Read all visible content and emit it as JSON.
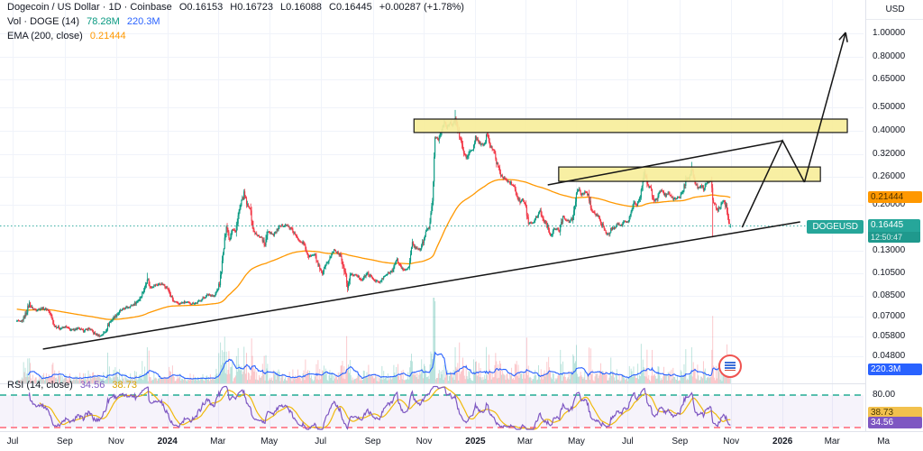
{
  "chart_data": {
    "type": "candlestick",
    "symbol": "Dogecoin / US Dollar",
    "interval": "1D",
    "exchange": "Coinbase",
    "title": "Dogecoin / US Dollar · 1D · Coinbase",
    "legend": {
      "ohlc": {
        "o": "O0.16153",
        "h": "H0.16723",
        "l": "L0.16088",
        "c": "C0.16445",
        "change": "+0.00287 (+1.78%)"
      },
      "volume": {
        "label": "Vol · DOGE (14)",
        "current": "78.28M",
        "ma": "220.3M"
      },
      "ema": {
        "label": "EMA (200, close)",
        "value": "0.21444"
      },
      "rsi": {
        "label": "RSI (14, close)",
        "value": "34.56",
        "ma_value": "38.73"
      }
    },
    "price_axis": {
      "currency": "USD",
      "ticks": [
        "1.00000",
        "0.80000",
        "0.65000",
        "0.50000",
        "0.40000",
        "0.32000",
        "0.26000",
        "0.20000",
        "0.13000",
        "0.10500",
        "0.08500",
        "0.07000",
        "0.05800",
        "0.04800"
      ],
      "last_price": "0.16445",
      "countdown": "12:50:47",
      "ema_badge": "0.21444",
      "volume_badge": "220.3M",
      "rsi_upper_label": "80.00",
      "rsi_ma_badge": "38.73",
      "rsi_badge": "34.56"
    },
    "time_axis": [
      {
        "d": 0,
        "t": "Jul"
      },
      {
        "d": 62,
        "t": "Sep"
      },
      {
        "d": 123,
        "t": "Nov"
      },
      {
        "d": 184,
        "t": "2024",
        "b": 1
      },
      {
        "d": 244,
        "t": "Mar"
      },
      {
        "d": 305,
        "t": "May"
      },
      {
        "d": 366,
        "t": "Jul"
      },
      {
        "d": 428,
        "t": "Sep"
      },
      {
        "d": 489,
        "t": "Nov"
      },
      {
        "d": 550,
        "t": "2025",
        "b": 1
      },
      {
        "d": 609,
        "t": "Mar"
      },
      {
        "d": 670,
        "t": "May"
      },
      {
        "d": 731,
        "t": "Jul"
      },
      {
        "d": 793,
        "t": "Sep"
      },
      {
        "d": 854,
        "t": "Nov"
      },
      {
        "d": 915,
        "t": "2026",
        "b": 1
      },
      {
        "d": 974,
        "t": "Mar"
      },
      {
        "d": 1035,
        "t": "Ma"
      }
    ],
    "levels": {
      "last_price": 0.16445,
      "ema_value": 0.21444,
      "rsi_value": 34.56,
      "rsi_ma_value": 38.73,
      "rsi_upper": 80,
      "rsi_lower": 20
    },
    "series": {
      "start_day": 5,
      "end_day": 853,
      "last_candle": {
        "o": 0.16153,
        "h": 0.16723,
        "l": 0.16088,
        "c": 0.16445
      },
      "anchors": [
        [
          5,
          0.067
        ],
        [
          10,
          0.0665
        ],
        [
          14,
          0.0695
        ],
        [
          20,
          0.079
        ],
        [
          23,
          0.0755
        ],
        [
          28,
          0.0745
        ],
        [
          35,
          0.0755
        ],
        [
          42,
          0.0745
        ],
        [
          46,
          0.07
        ],
        [
          49,
          0.0645
        ],
        [
          56,
          0.0625
        ],
        [
          63,
          0.0635
        ],
        [
          70,
          0.0615
        ],
        [
          77,
          0.0625
        ],
        [
          84,
          0.0612
        ],
        [
          91,
          0.0625
        ],
        [
          98,
          0.0592
        ],
        [
          104,
          0.0583
        ],
        [
          110,
          0.0605
        ],
        [
          115,
          0.0662
        ],
        [
          122,
          0.0702
        ],
        [
          129,
          0.0742
        ],
        [
          136,
          0.0762
        ],
        [
          143,
          0.0778
        ],
        [
          150,
          0.0818
        ],
        [
          157,
          0.0915
        ],
        [
          160,
          0.101
        ],
        [
          163,
          0.092
        ],
        [
          170,
          0.094
        ],
        [
          177,
          0.0952
        ],
        [
          184,
          0.0912
        ],
        [
          191,
          0.0805
        ],
        [
          198,
          0.0788
        ],
        [
          205,
          0.0802
        ],
        [
          212,
          0.079
        ],
        [
          219,
          0.0795
        ],
        [
          226,
          0.0828
        ],
        [
          233,
          0.0862
        ],
        [
          240,
          0.0845
        ],
        [
          246,
          0.095
        ],
        [
          251,
          0.133
        ],
        [
          254,
          0.166
        ],
        [
          258,
          0.144
        ],
        [
          261,
          0.161
        ],
        [
          265,
          0.154
        ],
        [
          268,
          0.181
        ],
        [
          272,
          0.204
        ],
        [
          275,
          0.221
        ],
        [
          279,
          0.197
        ],
        [
          282,
          0.195
        ],
        [
          286,
          0.157
        ],
        [
          290,
          0.15
        ],
        [
          296,
          0.147
        ],
        [
          300,
          0.135
        ],
        [
          303,
          0.157
        ],
        [
          310,
          0.151
        ],
        [
          317,
          0.162
        ],
        [
          324,
          0.166
        ],
        [
          331,
          0.159
        ],
        [
          338,
          0.146
        ],
        [
          345,
          0.14
        ],
        [
          352,
          0.123
        ],
        [
          359,
          0.125
        ],
        [
          365,
          0.108
        ],
        [
          368,
          0.104
        ],
        [
          375,
          0.118
        ],
        [
          382,
          0.131
        ],
        [
          386,
          0.128
        ],
        [
          390,
          0.124
        ],
        [
          397,
          0.098
        ],
        [
          398,
          0.09
        ],
        [
          401,
          0.104
        ],
        [
          408,
          0.103
        ],
        [
          415,
          0.099
        ],
        [
          422,
          0.105
        ],
        [
          429,
          0.099
        ],
        [
          436,
          0.0962
        ],
        [
          443,
          0.103
        ],
        [
          450,
          0.107
        ],
        [
          457,
          0.119
        ],
        [
          464,
          0.108
        ],
        [
          471,
          0.111
        ],
        [
          475,
          0.139
        ],
        [
          478,
          0.134
        ],
        [
          485,
          0.131
        ],
        [
          492,
          0.158
        ],
        [
          495,
          0.161
        ],
        [
          499,
          0.205
        ],
        [
          502,
          0.38
        ],
        [
          506,
          0.37
        ],
        [
          509,
          0.4
        ],
        [
          513,
          0.43
        ],
        [
          516,
          0.415
        ],
        [
          520,
          0.43
        ],
        [
          523,
          0.42
        ],
        [
          526,
          0.455
        ],
        [
          529,
          0.405
        ],
        [
          533,
          0.36
        ],
        [
          536,
          0.325
        ],
        [
          540,
          0.31
        ],
        [
          543,
          0.33
        ],
        [
          547,
          0.335
        ],
        [
          550,
          0.375
        ],
        [
          554,
          0.36
        ],
        [
          557,
          0.35
        ],
        [
          561,
          0.355
        ],
        [
          564,
          0.39
        ],
        [
          568,
          0.35
        ],
        [
          571,
          0.335
        ],
        [
          575,
          0.3
        ],
        [
          581,
          0.26
        ],
        [
          585,
          0.255
        ],
        [
          588,
          0.25
        ],
        [
          592,
          0.245
        ],
        [
          596,
          0.24
        ],
        [
          599,
          0.22
        ],
        [
          603,
          0.205
        ],
        [
          606,
          0.21
        ],
        [
          609,
          0.2
        ],
        [
          613,
          0.17
        ],
        [
          616,
          0.168
        ],
        [
          620,
          0.172
        ],
        [
          623,
          0.18
        ],
        [
          627,
          0.19
        ],
        [
          630,
          0.175
        ],
        [
          634,
          0.168
        ],
        [
          640,
          0.15
        ],
        [
          643,
          0.158
        ],
        [
          647,
          0.16
        ],
        [
          650,
          0.156
        ],
        [
          654,
          0.18
        ],
        [
          657,
          0.175
        ],
        [
          661,
          0.17
        ],
        [
          665,
          0.175
        ],
        [
          670,
          0.22
        ],
        [
          673,
          0.23
        ],
        [
          677,
          0.22
        ],
        [
          680,
          0.226
        ],
        [
          684,
          0.22
        ],
        [
          688,
          0.19
        ],
        [
          691,
          0.185
        ],
        [
          695,
          0.18
        ],
        [
          698,
          0.175
        ],
        [
          701,
          0.163
        ],
        [
          704,
          0.155
        ],
        [
          708,
          0.151
        ],
        [
          711,
          0.158
        ],
        [
          715,
          0.162
        ],
        [
          718,
          0.168
        ],
        [
          724,
          0.164
        ],
        [
          727,
          0.17
        ],
        [
          731,
          0.17
        ],
        [
          735,
          0.185
        ],
        [
          738,
          0.205
        ],
        [
          742,
          0.2
        ],
        [
          745,
          0.21
        ],
        [
          748,
          0.235
        ],
        [
          751,
          0.27
        ],
        [
          755,
          0.24
        ],
        [
          758,
          0.235
        ],
        [
          762,
          0.205
        ],
        [
          765,
          0.21
        ],
        [
          769,
          0.23
        ],
        [
          772,
          0.225
        ],
        [
          776,
          0.218
        ],
        [
          779,
          0.222
        ],
        [
          783,
          0.215
        ],
        [
          786,
          0.21
        ],
        [
          790,
          0.215
        ],
        [
          793,
          0.214
        ],
        [
          797,
          0.23
        ],
        [
          800,
          0.25
        ],
        [
          804,
          0.26
        ],
        [
          807,
          0.283
        ],
        [
          811,
          0.245
        ],
        [
          814,
          0.235
        ],
        [
          818,
          0.24
        ],
        [
          821,
          0.232
        ],
        [
          824,
          0.245
        ],
        [
          827,
          0.248
        ],
        [
          830,
          0.25
        ],
        [
          832,
          0.21
        ],
        [
          835,
          0.198
        ],
        [
          838,
          0.19
        ],
        [
          842,
          0.2
        ],
        [
          845,
          0.21
        ],
        [
          848,
          0.196
        ],
        [
          850,
          0.178
        ],
        [
          852,
          0.168
        ],
        [
          853,
          0.16445
        ]
      ],
      "spikes": [
        {
          "d": 832,
          "l": 0.147
        },
        {
          "d": 526,
          "h": 0.487
        },
        {
          "d": 160,
          "h": 0.1055
        },
        {
          "d": 807,
          "h": 0.299
        },
        {
          "d": 275,
          "h": 0.231
        }
      ]
    },
    "drawings": {
      "boxes": [
        {
          "d1": 477,
          "p1": 0.394,
          "d2": 992,
          "p2": 0.447
        },
        {
          "d1": 649,
          "p1": 0.249,
          "d2": 960,
          "p2": 0.285
        }
      ],
      "polylines": [
        {
          "pts": [
            [
              36,
              0.0515
            ],
            [
              936,
              0.1702
            ]
          ]
        },
        {
          "pts": [
            [
              636,
              0.2408
            ],
            [
              915,
              0.3648
            ]
          ]
        },
        {
          "pts": [
            [
              867,
              0.1617
            ],
            [
              915,
              0.3648
            ],
            [
              941,
              0.247
            ]
          ]
        }
      ],
      "arrows": [
        {
          "pts": [
            [
              941,
              0.247
            ],
            [
              990,
              1.0085
            ]
          ]
        }
      ]
    },
    "colors": {
      "up": "#089981",
      "down": "#f23645",
      "ema": "#ff9800",
      "vol_ma": "#2962ff",
      "rsi": "#7e57c2",
      "rsi_ma": "#f0b90b",
      "band_upper": "#22ab94",
      "band_lower": "#f23645",
      "accent": "#26a69a",
      "ema_badge_bg": "#ff9800",
      "rsi_ma_badge_bg": "#f2c14e",
      "box_fill": "#f7ee9b",
      "drawing": "#161616",
      "grid": "#f0f3fa"
    }
  }
}
